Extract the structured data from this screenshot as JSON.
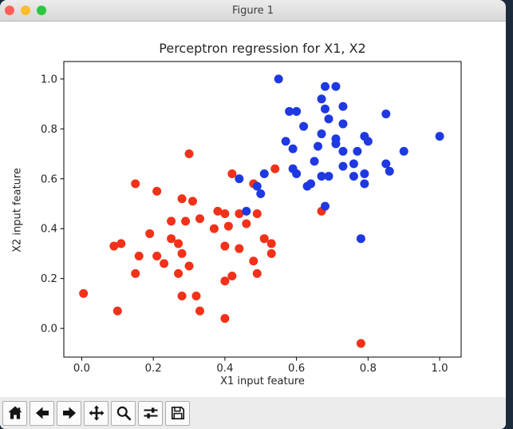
{
  "window": {
    "title": "Figure 1"
  },
  "titlebar": {
    "close_color": "#ff5f57",
    "minimize_color": "#febc2e",
    "zoom_color": "#28c841"
  },
  "chart_data": {
    "type": "scatter",
    "title": "Perceptron regression for X1, X2",
    "xlabel": "X1 input feature",
    "ylabel": "X2 input feature",
    "xlim": [
      -0.05,
      1.06
    ],
    "ylim": [
      -0.115,
      1.07
    ],
    "xticks": [
      0.0,
      0.2,
      0.4,
      0.6,
      0.8,
      1.0
    ],
    "yticks": [
      0.0,
      0.2,
      0.4,
      0.6,
      0.8,
      1.0
    ],
    "grid": false,
    "legend": "none",
    "marker_radius_px": 5.5,
    "series": [
      {
        "name": "class-red",
        "color": "#f23119",
        "points": [
          [
            0.3,
            0.7
          ],
          [
            0.15,
            0.58
          ],
          [
            0.21,
            0.55
          ],
          [
            0.28,
            0.52
          ],
          [
            0.31,
            0.51
          ],
          [
            0.42,
            0.62
          ],
          [
            0.38,
            0.47
          ],
          [
            0.54,
            0.64
          ],
          [
            0.4,
            0.46
          ],
          [
            0.25,
            0.43
          ],
          [
            0.29,
            0.43
          ],
          [
            0.33,
            0.44
          ],
          [
            0.37,
            0.4
          ],
          [
            0.41,
            0.41
          ],
          [
            0.46,
            0.42
          ],
          [
            0.19,
            0.38
          ],
          [
            0.11,
            0.34
          ],
          [
            0.09,
            0.33
          ],
          [
            0.25,
            0.36
          ],
          [
            0.27,
            0.34
          ],
          [
            0.4,
            0.33
          ],
          [
            0.44,
            0.32
          ],
          [
            0.16,
            0.29
          ],
          [
            0.21,
            0.29
          ],
          [
            0.28,
            0.3
          ],
          [
            0.23,
            0.26
          ],
          [
            0.3,
            0.25
          ],
          [
            0.15,
            0.22
          ],
          [
            0.27,
            0.22
          ],
          [
            0.42,
            0.21
          ],
          [
            0.4,
            0.19
          ],
          [
            0.005,
            0.14
          ],
          [
            0.28,
            0.13
          ],
          [
            0.32,
            0.13
          ],
          [
            0.1,
            0.07
          ],
          [
            0.33,
            0.07
          ],
          [
            0.4,
            0.04
          ],
          [
            0.44,
            0.46
          ],
          [
            0.49,
            0.46
          ],
          [
            0.51,
            0.36
          ],
          [
            0.53,
            0.34
          ],
          [
            0.53,
            0.3
          ],
          [
            0.48,
            0.27
          ],
          [
            0.49,
            0.22
          ],
          [
            0.48,
            0.58
          ],
          [
            0.67,
            0.47
          ],
          [
            0.78,
            -0.06
          ]
        ]
      },
      {
        "name": "class-blue",
        "color": "#1e39e1",
        "points": [
          [
            0.55,
            1.0
          ],
          [
            0.68,
            0.97
          ],
          [
            0.71,
            0.97
          ],
          [
            0.67,
            0.92
          ],
          [
            0.58,
            0.87
          ],
          [
            0.6,
            0.87
          ],
          [
            0.68,
            0.88
          ],
          [
            0.73,
            0.89
          ],
          [
            0.85,
            0.86
          ],
          [
            0.69,
            0.84
          ],
          [
            0.62,
            0.81
          ],
          [
            0.73,
            0.82
          ],
          [
            1.0,
            0.77
          ],
          [
            0.67,
            0.78
          ],
          [
            0.79,
            0.77
          ],
          [
            0.8,
            0.75
          ],
          [
            0.71,
            0.76
          ],
          [
            0.71,
            0.74
          ],
          [
            0.57,
            0.75
          ],
          [
            0.59,
            0.72
          ],
          [
            0.66,
            0.73
          ],
          [
            0.73,
            0.71
          ],
          [
            0.77,
            0.71
          ],
          [
            0.9,
            0.71
          ],
          [
            0.65,
            0.67
          ],
          [
            0.73,
            0.65
          ],
          [
            0.76,
            0.66
          ],
          [
            0.85,
            0.66
          ],
          [
            0.86,
            0.63
          ],
          [
            0.51,
            0.62
          ],
          [
            0.59,
            0.64
          ],
          [
            0.6,
            0.62
          ],
          [
            0.67,
            0.61
          ],
          [
            0.69,
            0.61
          ],
          [
            0.76,
            0.61
          ],
          [
            0.79,
            0.62
          ],
          [
            0.79,
            0.58
          ],
          [
            0.63,
            0.57
          ],
          [
            0.64,
            0.58
          ],
          [
            0.68,
            0.49
          ],
          [
            0.44,
            0.6
          ],
          [
            0.46,
            0.47
          ],
          [
            0.49,
            0.57
          ],
          [
            0.5,
            0.54
          ],
          [
            0.78,
            0.36
          ]
        ]
      }
    ]
  },
  "toolbar": {
    "buttons": [
      {
        "id": "home",
        "icon": "home-icon"
      },
      {
        "id": "back",
        "icon": "arrow-left-icon"
      },
      {
        "id": "forward",
        "icon": "arrow-right-icon"
      },
      {
        "id": "pan",
        "icon": "move-icon"
      },
      {
        "id": "zoom",
        "icon": "magnifier-icon"
      },
      {
        "id": "subplots",
        "icon": "sliders-icon"
      },
      {
        "id": "save",
        "icon": "floppy-icon"
      }
    ]
  }
}
